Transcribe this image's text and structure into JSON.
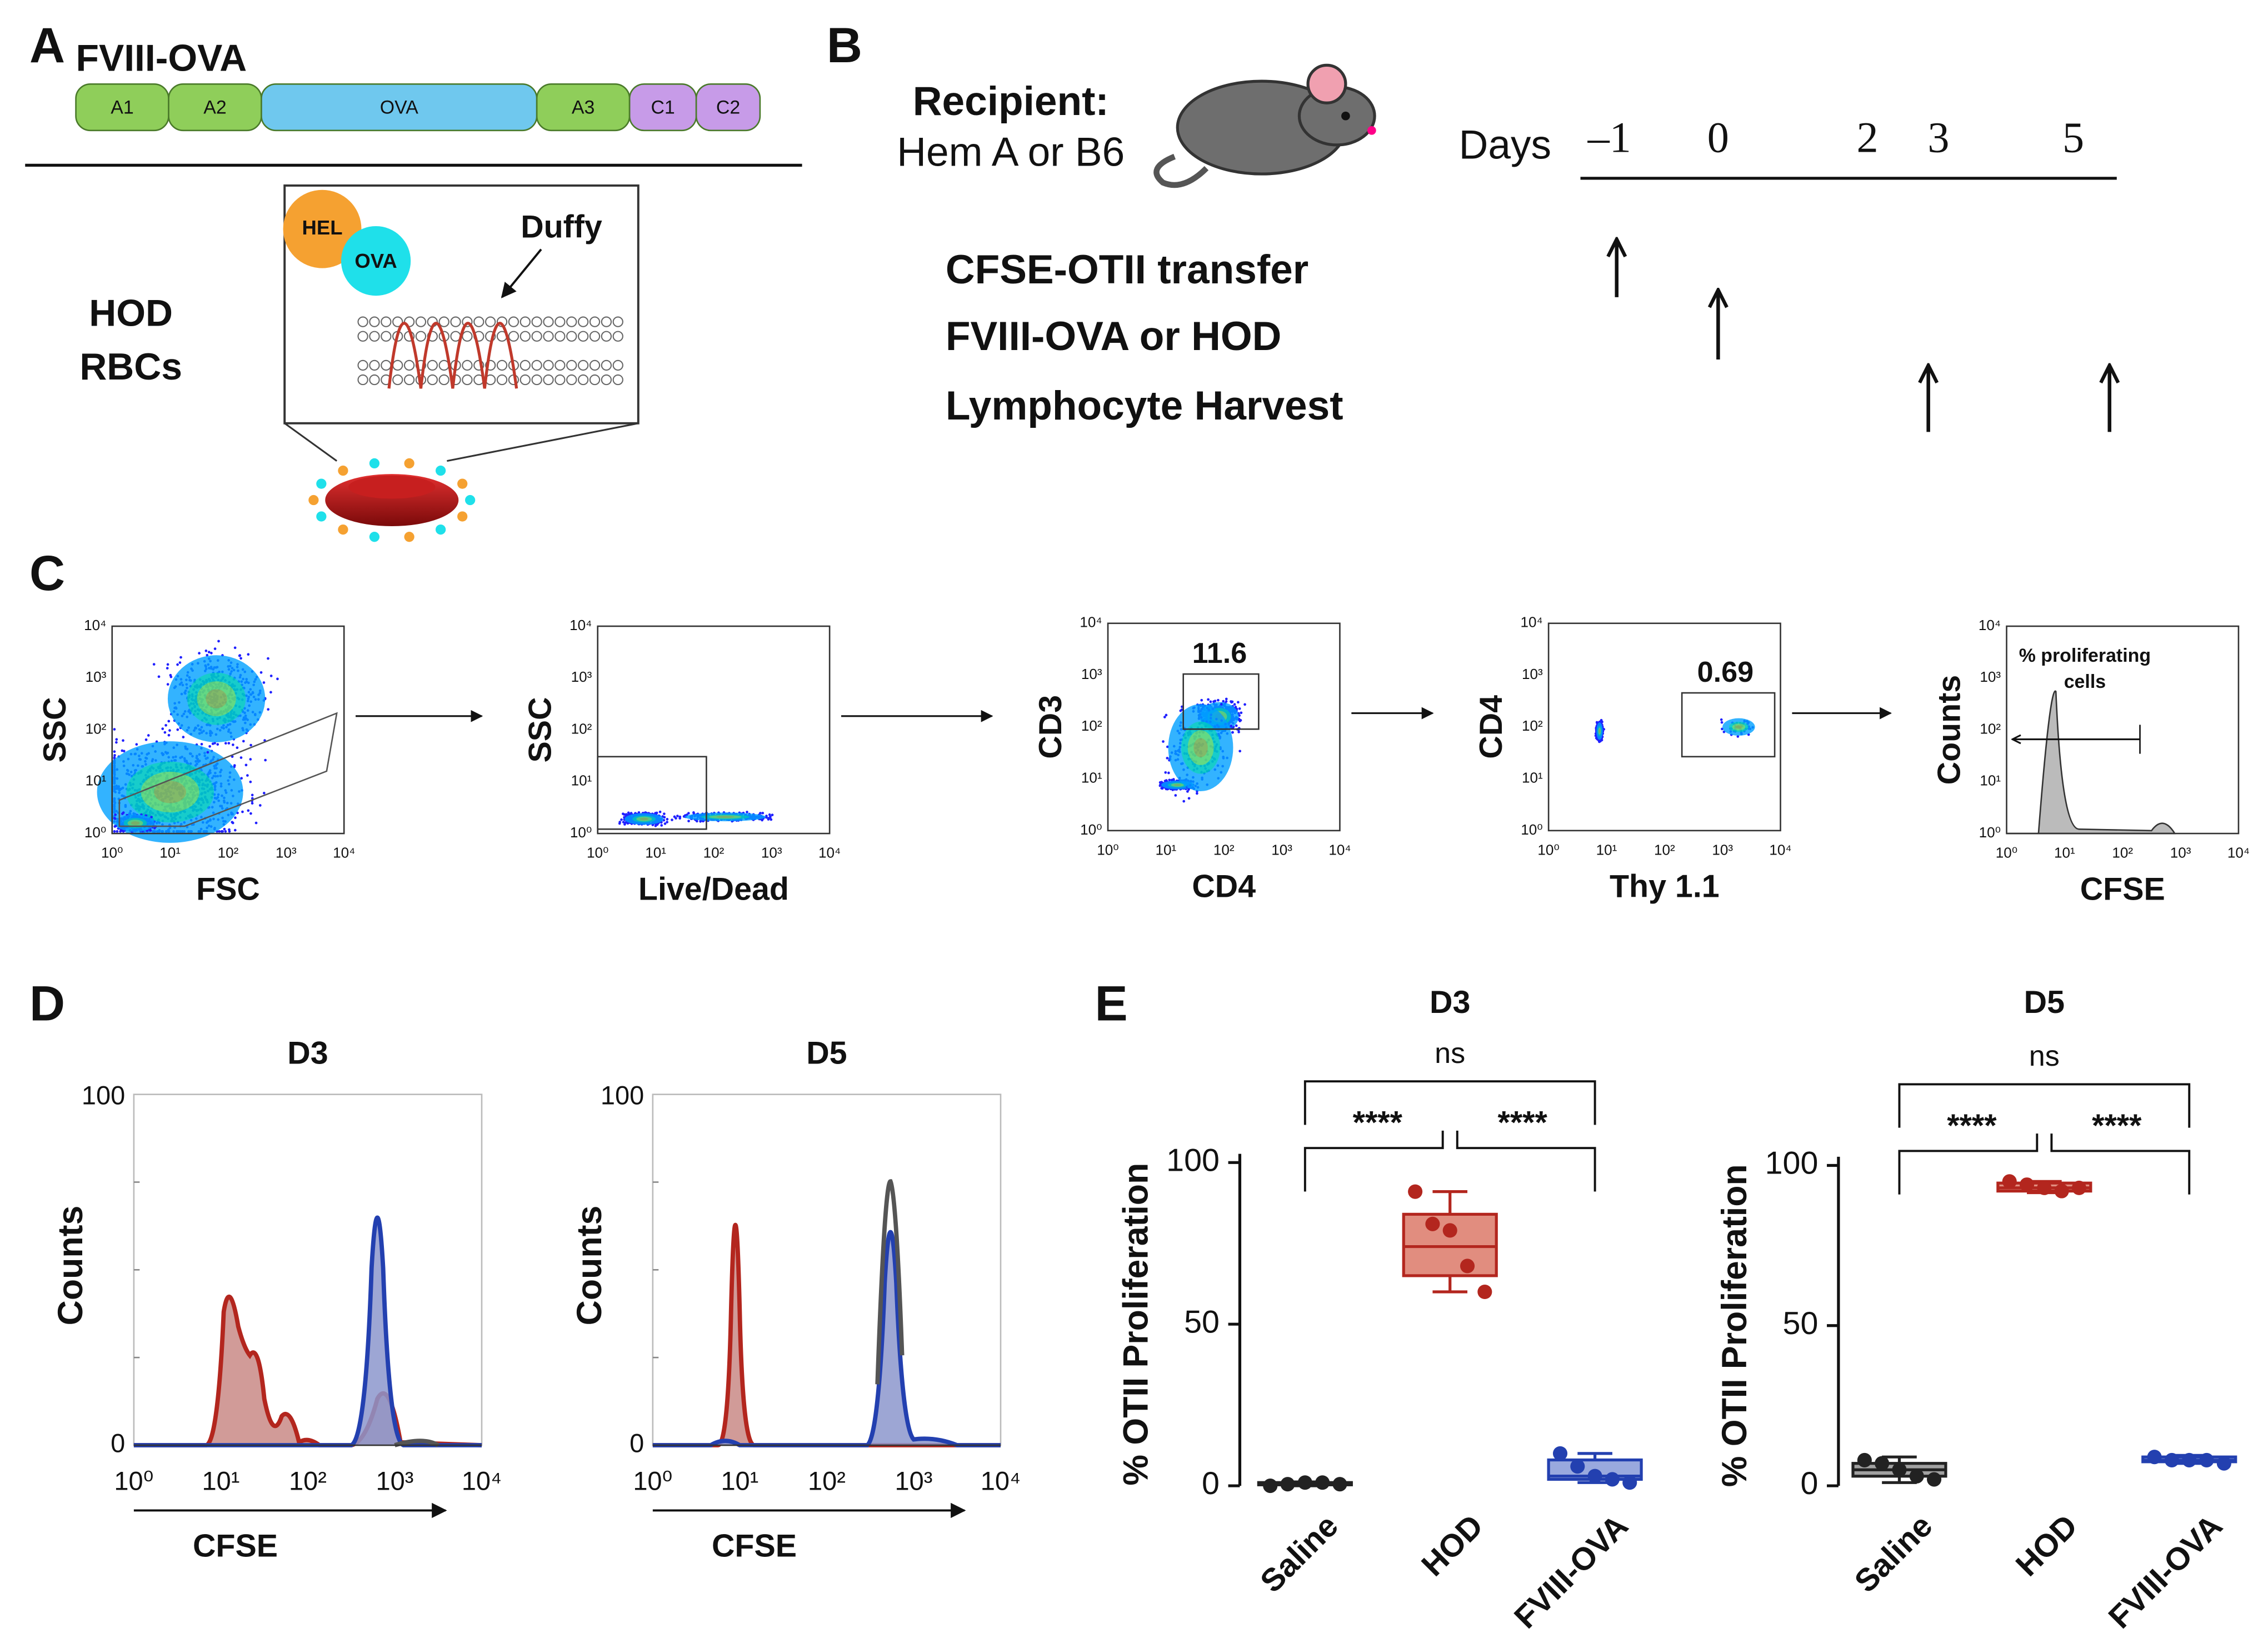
{
  "panels": {
    "A": {
      "label": "A",
      "construct": "FVIII-OVA",
      "domains": [
        "A1",
        "A2",
        "OVA",
        "A3",
        "C1",
        "C2"
      ],
      "hel": "HEL",
      "ova": "OVA",
      "duffy": "Duffy",
      "cells": [
        "HOD",
        "RBCs"
      ]
    },
    "B": {
      "label": "B",
      "recipient": "Recipient:",
      "strain": "Hem A or B6",
      "days_label": "Days",
      "days": [
        "–1",
        "0",
        "2",
        "3",
        "5"
      ],
      "events": [
        "CFSE-OTII transfer",
        "FVIII-OVA or HOD",
        "Lymphocyte Harvest"
      ]
    },
    "C": {
      "label": "C",
      "log_ticks": [
        "10⁰",
        "10¹",
        "10²",
        "10³",
        "10⁴"
      ],
      "plots": [
        {
          "y_label": "SSC",
          "x_label": "FSC"
        },
        {
          "y_label": "SSC",
          "x_label": "Live/Dead"
        },
        {
          "y_label": "CD3",
          "x_label": "CD4",
          "gate": "11.6"
        },
        {
          "y_label": "CD4",
          "x_label": "Thy 1.1",
          "gate": "0.69"
        },
        {
          "y_label": "Counts",
          "x_label": "CFSE",
          "gate": "% proliferating cells"
        }
      ]
    },
    "D": {
      "label": "D",
      "titles": [
        "D3",
        "D5"
      ],
      "y_ticks": [
        "0",
        "100"
      ],
      "y_label": "Counts",
      "x_label": "CFSE"
    },
    "E": {
      "label": "E",
      "y_label": "% OTII Proliferation",
      "categories": [
        "Saline",
        "HOD",
        "FVIII-OVA"
      ],
      "colors": [
        "#222222",
        "#b3261e",
        "#2340b0"
      ],
      "fills": [
        "#8a8a8a",
        "#d9705f",
        "#7f93d6"
      ],
      "ylim": [
        0,
        100
      ],
      "yticks": [
        0,
        50,
        100
      ],
      "charts": [
        {
          "title": "D3",
          "ns": "ns",
          "left": "****",
          "right": "****",
          "groups": [
            {
              "points": [
                0,
                0.5,
                1,
                1,
                0.5
              ],
              "min": 0,
              "q1": 0.3,
              "median": 0.6,
              "q3": 1,
              "max": 1.2
            },
            {
              "points": [
                91,
                81,
                79,
                68,
                60
              ],
              "min": 60,
              "q1": 65,
              "median": 74,
              "q3": 84,
              "max": 91
            },
            {
              "points": [
                10,
                6,
                3,
                2,
                1
              ],
              "min": 1,
              "q1": 2,
              "median": 3,
              "q3": 8,
              "max": 10
            }
          ]
        },
        {
          "title": "D5",
          "ns": "ns",
          "left": "****",
          "right": "****",
          "groups": [
            {
              "points": [
                8,
                7,
                5,
                3,
                2
              ],
              "min": 1,
              "q1": 3,
              "median": 5,
              "q3": 7,
              "max": 9
            },
            {
              "points": [
                95,
                94,
                93,
                92,
                93
              ],
              "min": 91.5,
              "q1": 92,
              "median": 93,
              "q3": 94.5,
              "max": 95
            },
            {
              "points": [
                9,
                8,
                8,
                8,
                7
              ],
              "min": 7,
              "q1": 7.5,
              "median": 8,
              "q3": 9,
              "max": 9.5
            }
          ]
        }
      ]
    }
  }
}
